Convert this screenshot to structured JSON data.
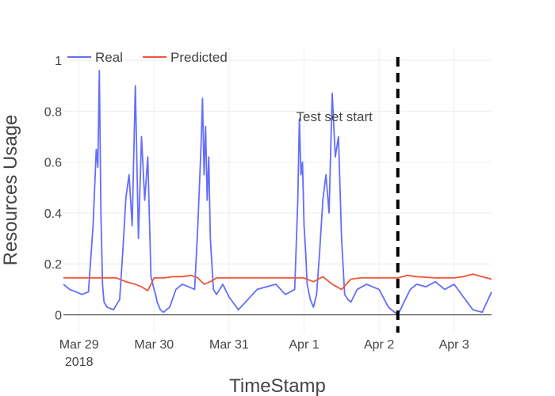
{
  "chart_data": {
    "type": "line",
    "title": "",
    "xlabel": "TimeStamp",
    "ylabel": "Resources Usage",
    "x_range": [
      "2018-03-28T19:00",
      "2018-04-03T12:00"
    ],
    "ylim": [
      -0.07,
      1.05
    ],
    "x_ticks": [
      {
        "value": "2018-03-29",
        "label": "Mar 29",
        "sublabel": "2018"
      },
      {
        "value": "2018-03-30",
        "label": "Mar 30",
        "sublabel": ""
      },
      {
        "value": "2018-03-31",
        "label": "Mar 31",
        "sublabel": ""
      },
      {
        "value": "2018-04-01",
        "label": "Apr 1",
        "sublabel": ""
      },
      {
        "value": "2018-04-02",
        "label": "Apr 2",
        "sublabel": ""
      },
      {
        "value": "2018-04-03",
        "label": "Apr 3",
        "sublabel": ""
      }
    ],
    "y_ticks": [
      0,
      0.2,
      0.4,
      0.6,
      0.8,
      1
    ],
    "y_tick_labels": [
      "0",
      "0.2",
      "0.4",
      "0.6",
      "0.8",
      "1"
    ],
    "grid": true,
    "legend": {
      "placement": "top-left",
      "orientation": "horizontal"
    },
    "series": [
      {
        "name": "Real",
        "color": "#636efa",
        "x": [
          "2018-03-28T19:00",
          "2018-03-28T21:00",
          "2018-03-28T23:00",
          "2018-03-29T01:00",
          "2018-03-29T03:00",
          "2018-03-29T04:30",
          "2018-03-29T05:30",
          "2018-03-29T06:00",
          "2018-03-29T06:30",
          "2018-03-29T07:00",
          "2018-03-29T07:30",
          "2018-03-29T08:00",
          "2018-03-29T09:00",
          "2018-03-29T11:00",
          "2018-03-29T13:00",
          "2018-03-29T14:00",
          "2018-03-29T15:00",
          "2018-03-29T16:00",
          "2018-03-29T17:00",
          "2018-03-29T18:00",
          "2018-03-29T19:00",
          "2018-03-29T20:00",
          "2018-03-29T21:00",
          "2018-03-29T22:00",
          "2018-03-29T23:00",
          "2018-03-30T00:00",
          "2018-03-30T00:30",
          "2018-03-30T01:00",
          "2018-03-30T02:00",
          "2018-03-30T03:00",
          "2018-03-30T05:00",
          "2018-03-30T07:00",
          "2018-03-30T09:00",
          "2018-03-30T11:00",
          "2018-03-30T13:00",
          "2018-03-30T14:00",
          "2018-03-30T15:00",
          "2018-03-30T15:30",
          "2018-03-30T16:00",
          "2018-03-30T16:30",
          "2018-03-30T17:00",
          "2018-03-30T17:30",
          "2018-03-30T18:00",
          "2018-03-30T19:00",
          "2018-03-30T20:00",
          "2018-03-30T22:00",
          "2018-03-31T00:00",
          "2018-03-31T03:00",
          "2018-03-31T06:00",
          "2018-03-31T09:00",
          "2018-03-31T12:00",
          "2018-03-31T15:00",
          "2018-03-31T18:00",
          "2018-03-31T21:00",
          "2018-03-31T22:00",
          "2018-03-31T22:30",
          "2018-03-31T23:00",
          "2018-03-31T23:30",
          "2018-04-01T00:00",
          "2018-04-01T00:30",
          "2018-04-01T01:00",
          "2018-04-01T02:00",
          "2018-04-01T03:00",
          "2018-04-01T04:00",
          "2018-04-01T05:00",
          "2018-04-01T06:00",
          "2018-04-01T07:00",
          "2018-04-01T08:00",
          "2018-04-01T09:00",
          "2018-04-01T10:00",
          "2018-04-01T11:00",
          "2018-04-01T12:00",
          "2018-04-01T13:00",
          "2018-04-01T14:00",
          "2018-04-01T15:00",
          "2018-04-01T17:00",
          "2018-04-01T20:00",
          "2018-04-02T00:00",
          "2018-04-02T03:00",
          "2018-04-02T06:00",
          "2018-04-02T08:00",
          "2018-04-02T10:00",
          "2018-04-02T12:00",
          "2018-04-02T15:00",
          "2018-04-02T18:00",
          "2018-04-02T21:00",
          "2018-04-03T00:00",
          "2018-04-03T03:00",
          "2018-04-03T06:00",
          "2018-04-03T09:00",
          "2018-04-03T12:00"
        ],
        "y": [
          0.12,
          0.1,
          0.09,
          0.08,
          0.09,
          0.35,
          0.65,
          0.58,
          0.96,
          0.4,
          0.12,
          0.05,
          0.03,
          0.02,
          0.06,
          0.25,
          0.46,
          0.55,
          0.35,
          0.9,
          0.3,
          0.7,
          0.45,
          0.62,
          0.15,
          0.1,
          0.08,
          0.05,
          0.02,
          0.01,
          0.03,
          0.1,
          0.12,
          0.11,
          0.1,
          0.35,
          0.65,
          0.85,
          0.55,
          0.74,
          0.45,
          0.62,
          0.3,
          0.1,
          0.08,
          0.12,
          0.07,
          0.02,
          0.06,
          0.1,
          0.11,
          0.12,
          0.08,
          0.1,
          0.45,
          0.77,
          0.55,
          0.6,
          0.35,
          0.25,
          0.12,
          0.06,
          0.03,
          0.08,
          0.25,
          0.45,
          0.55,
          0.4,
          0.87,
          0.62,
          0.7,
          0.3,
          0.08,
          0.06,
          0.05,
          0.1,
          0.12,
          0.1,
          0.03,
          0.0,
          0.05,
          0.1,
          0.12,
          0.11,
          0.13,
          0.1,
          0.12,
          0.07,
          0.02,
          0.01,
          0.09
        ]
      },
      {
        "name": "Predicted",
        "color": "#ef553b",
        "x": [
          "2018-03-28T19:00",
          "2018-03-29T12:00",
          "2018-03-29T15:00",
          "2018-03-29T18:00",
          "2018-03-29T20:00",
          "2018-03-29T22:00",
          "2018-03-30T00:00",
          "2018-03-30T03:00",
          "2018-03-30T06:00",
          "2018-03-30T09:00",
          "2018-03-30T12:00",
          "2018-03-30T14:00",
          "2018-03-30T16:00",
          "2018-03-30T18:00",
          "2018-03-30T20:00",
          "2018-03-31T00:00",
          "2018-03-31T06:00",
          "2018-03-31T12:00",
          "2018-03-31T18:00",
          "2018-04-01T00:00",
          "2018-04-01T03:00",
          "2018-04-01T06:00",
          "2018-04-01T09:00",
          "2018-04-01T12:00",
          "2018-04-01T15:00",
          "2018-04-01T18:00",
          "2018-04-02T00:00",
          "2018-04-02T06:00",
          "2018-04-02T09:00",
          "2018-04-02T12:00",
          "2018-04-02T18:00",
          "2018-04-03T00:00",
          "2018-04-03T03:00",
          "2018-04-03T06:00",
          "2018-04-03T12:00"
        ],
        "y": [
          0.145,
          0.145,
          0.13,
          0.12,
          0.11,
          0.095,
          0.145,
          0.145,
          0.15,
          0.15,
          0.155,
          0.145,
          0.12,
          0.13,
          0.145,
          0.145,
          0.145,
          0.145,
          0.145,
          0.145,
          0.13,
          0.15,
          0.12,
          0.1,
          0.14,
          0.145,
          0.145,
          0.145,
          0.155,
          0.15,
          0.145,
          0.145,
          0.15,
          0.16,
          0.14
        ]
      }
    ],
    "annotations": [
      {
        "text": "Test set start",
        "x": "2018-04-01T00:00",
        "y": 0.78
      }
    ],
    "vertical_lines": [
      {
        "x": "2018-04-02T06:00",
        "style": "dashed",
        "color": "#000000"
      }
    ]
  }
}
